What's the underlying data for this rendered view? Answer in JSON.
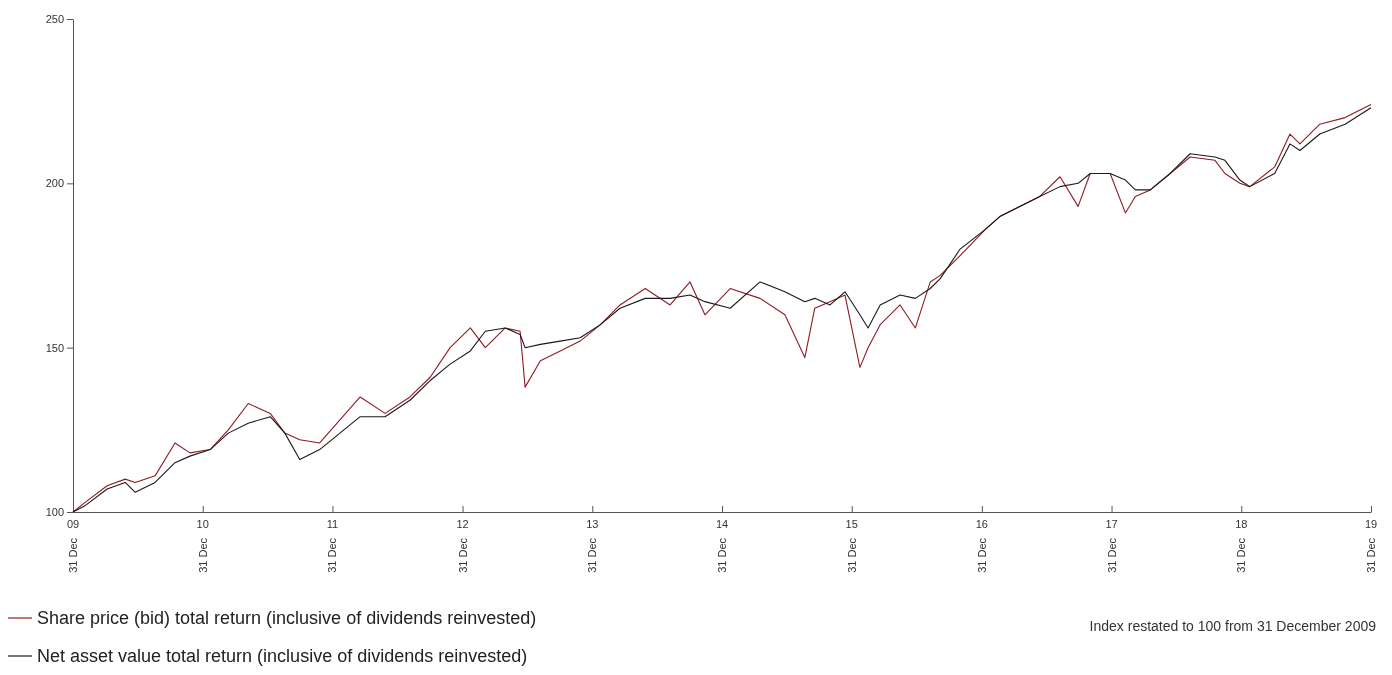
{
  "chart_data": {
    "type": "line",
    "x": [
      "2009-12-31",
      "2010-02-04",
      "2010-04-06",
      "2010-05-27",
      "2010-06-24",
      "2010-08-19",
      "2010-10-14",
      "2010-11-25",
      "2011-01-21",
      "2011-03-13",
      "2011-05-08",
      "2011-07-09",
      "2011-08-19",
      "2011-09-30",
      "2011-11-25",
      "2012-01-21",
      "2012-03-18",
      "2012-05-27",
      "2012-08-05",
      "2012-10-01",
      "2012-11-26",
      "2013-01-22",
      "2013-03-05",
      "2013-04-30",
      "2013-06-11",
      "2013-06-25",
      "2013-08-07",
      "2013-10-02",
      "2013-11-27",
      "2014-01-23",
      "2014-03-19",
      "2014-05-29",
      "2014-08-07",
      "2014-10-02",
      "2014-11-13",
      "2015-01-23",
      "2015-04-17",
      "2015-06-26",
      "2015-08-21",
      "2015-09-18",
      "2015-10-31",
      "2015-12-12",
      "2016-01-23",
      "2016-02-15",
      "2016-03-20",
      "2016-05-15",
      "2016-06-27",
      "2016-08-08",
      "2016-09-05",
      "2016-10-31",
      "2017-01-10",
      "2017-02-21",
      "2017-06-12",
      "2017-08-08",
      "2017-09-28",
      "2017-11-01",
      "2017-12-27",
      "2018-02-08",
      "2018-03-08",
      "2018-04-19",
      "2018-06-14",
      "2018-08-09",
      "2018-10-18",
      "2018-11-15",
      "2018-12-27",
      "2019-01-24",
      "2019-04-04",
      "2019-05-17",
      "2019-06-14",
      "2019-08-09",
      "2019-10-19",
      "2019-12-31"
    ],
    "series": [
      {
        "name": "Share price (bid) total return (inclusive of dividends reinvested)",
        "color": "#8c1c24",
        "values": [
          100,
          103,
          108,
          110,
          109,
          111,
          121,
          118,
          119,
          125,
          133,
          130,
          124,
          122,
          121,
          128,
          135,
          130,
          135,
          141,
          150,
          156,
          150,
          156,
          155,
          138,
          146,
          149,
          152,
          157,
          163,
          168,
          163,
          170,
          160,
          168,
          165,
          160,
          147,
          162,
          164,
          166,
          144,
          150,
          157,
          163,
          156,
          170,
          172,
          178,
          186,
          190,
          196,
          202,
          193,
          203,
          203,
          191,
          196,
          198,
          203,
          208,
          207,
          203,
          200,
          199,
          205,
          215,
          212,
          218,
          220,
          224
        ]
      },
      {
        "name": "Net asset value total return (inclusive of dividends reinvested)",
        "color": "#1a1a1a",
        "values": [
          100,
          102,
          107,
          109,
          106,
          109,
          115,
          117,
          119,
          124,
          127,
          129,
          124,
          116,
          119,
          124,
          129,
          129,
          134,
          140,
          145,
          149,
          155,
          156,
          154,
          150,
          151,
          152,
          153,
          157,
          162,
          165,
          165,
          166,
          164,
          162,
          170,
          167,
          164,
          165,
          163,
          167,
          160,
          156,
          163,
          166,
          165,
          168,
          171,
          180,
          186,
          190,
          196,
          199,
          200,
          203,
          203,
          201,
          198,
          198,
          203,
          209,
          208,
          207,
          201,
          199,
          203,
          212,
          210,
          215,
          218,
          223
        ]
      }
    ],
    "xlim": [
      "2009-12-31",
      "2019-12-31"
    ],
    "xticks": [
      {
        "value": "2009-12-31",
        "label": "09 31 Dec"
      },
      {
        "value": "2010-12-31",
        "label": "10 31 Dec"
      },
      {
        "value": "2011-12-31",
        "label": "11 31 Dec"
      },
      {
        "value": "2012-12-31",
        "label": "12 31 Dec"
      },
      {
        "value": "2013-12-31",
        "label": "13 31 Dec"
      },
      {
        "value": "2014-12-31",
        "label": "14 31 Dec"
      },
      {
        "value": "2015-12-31",
        "label": "15 31 Dec"
      },
      {
        "value": "2016-12-31",
        "label": "16 31 Dec"
      },
      {
        "value": "2017-12-31",
        "label": "17 31 Dec"
      },
      {
        "value": "2018-12-31",
        "label": "18 31 Dec"
      },
      {
        "value": "2019-12-31",
        "label": "19 31 Dec"
      }
    ],
    "ylim": [
      100,
      250
    ],
    "yticks": [
      100,
      150,
      200,
      250
    ],
    "legend": "bottom left",
    "annotations": [
      "Index restated to 100 from 31 December 2009"
    ]
  }
}
